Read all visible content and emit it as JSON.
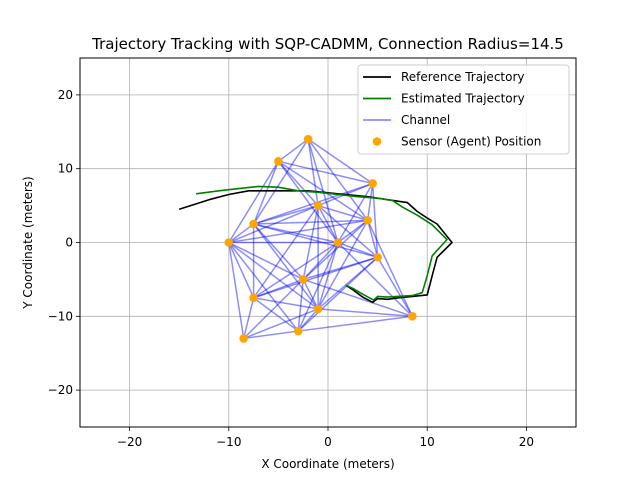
{
  "chart_data": {
    "type": "line",
    "title": "Trajectory Tracking with SQP-CADMM, Connection Radius=14.5",
    "xlabel": "X Coordinate (meters)",
    "ylabel": "Y Coordinate (meters)",
    "xlim": [
      -25,
      25
    ],
    "ylim": [
      -25,
      25
    ],
    "xticks": [
      -20,
      -10,
      0,
      10,
      20
    ],
    "yticks": [
      -20,
      -10,
      0,
      10,
      20
    ],
    "xtick_labels": [
      "−20",
      "−10",
      "0",
      "10",
      "20"
    ],
    "ytick_labels": [
      "−20",
      "−10",
      "0",
      "10",
      "20"
    ],
    "grid": true,
    "legend_position": "top-right",
    "legend": [
      {
        "label": "Reference Trajectory",
        "kind": "line",
        "color": "#000000"
      },
      {
        "label": "Estimated Trajectory",
        "kind": "line",
        "color": "#008000"
      },
      {
        "label": "Channel",
        "kind": "line",
        "color": "#0000ff"
      },
      {
        "label": "Sensor (Agent) Position",
        "kind": "marker",
        "color": "#ffa500"
      }
    ],
    "series": [
      {
        "name": "Reference Trajectory",
        "color": "#000000",
        "points": [
          [
            -15,
            4.5
          ],
          [
            -12,
            5.8
          ],
          [
            -10,
            6.5
          ],
          [
            -8,
            7
          ],
          [
            -5,
            7
          ],
          [
            -2,
            7
          ],
          [
            1,
            6.6
          ],
          [
            4,
            6.2
          ],
          [
            6,
            5.8
          ],
          [
            8,
            5.4
          ],
          [
            9,
            4.2
          ],
          [
            10,
            3.3
          ],
          [
            11,
            2.5
          ],
          [
            12.5,
            0
          ],
          [
            11,
            -2
          ],
          [
            10.5,
            -4.5
          ],
          [
            10,
            -7.1
          ],
          [
            8.5,
            -7.3
          ],
          [
            7,
            -7.5
          ],
          [
            6,
            -7.7
          ],
          [
            5,
            -7.6
          ],
          [
            4.5,
            -8.1
          ],
          [
            3.5,
            -7.4
          ],
          [
            2.5,
            -6.4
          ],
          [
            1.8,
            -5.8
          ]
        ]
      },
      {
        "name": "Estimated Trajectory",
        "color": "#008000",
        "points": [
          [
            -13.3,
            6.6
          ],
          [
            -11,
            7
          ],
          [
            -9,
            7.3
          ],
          [
            -7,
            7.6
          ],
          [
            -5,
            7.5
          ],
          [
            -3,
            7
          ],
          [
            -1,
            6.8
          ],
          [
            1,
            6.5
          ],
          [
            3,
            6.2
          ],
          [
            5,
            6
          ],
          [
            6.5,
            5.7
          ],
          [
            7.5,
            4.8
          ],
          [
            9,
            3.7
          ],
          [
            10.5,
            2.4
          ],
          [
            12,
            0.4
          ],
          [
            10.5,
            -1.8
          ],
          [
            10,
            -4.5
          ],
          [
            9.5,
            -6.8
          ],
          [
            8.5,
            -7.2
          ],
          [
            7,
            -7.3
          ],
          [
            6,
            -7.4
          ],
          [
            5,
            -7.3
          ],
          [
            4.6,
            -7.8
          ],
          [
            3.5,
            -7
          ],
          [
            2.5,
            -6.2
          ],
          [
            1.8,
            -5.8
          ]
        ]
      }
    ],
    "sensors": {
      "name": "Sensor (Agent) Position",
      "color": "#ffa500",
      "points": [
        [
          -2,
          14
        ],
        [
          -5,
          11
        ],
        [
          4.5,
          8
        ],
        [
          -1,
          5
        ],
        [
          4,
          3
        ],
        [
          -7.5,
          2.5
        ],
        [
          -10,
          0
        ],
        [
          1,
          0
        ],
        [
          5,
          -2
        ],
        [
          -2.5,
          -5
        ],
        [
          -7.5,
          -7.5
        ],
        [
          -1,
          -9
        ],
        [
          8.5,
          -10
        ],
        [
          -3,
          -12
        ],
        [
          -8.5,
          -13
        ]
      ]
    },
    "channel": {
      "name": "Channel",
      "color": "#0000ff",
      "connection_radius": 14.5
    }
  }
}
